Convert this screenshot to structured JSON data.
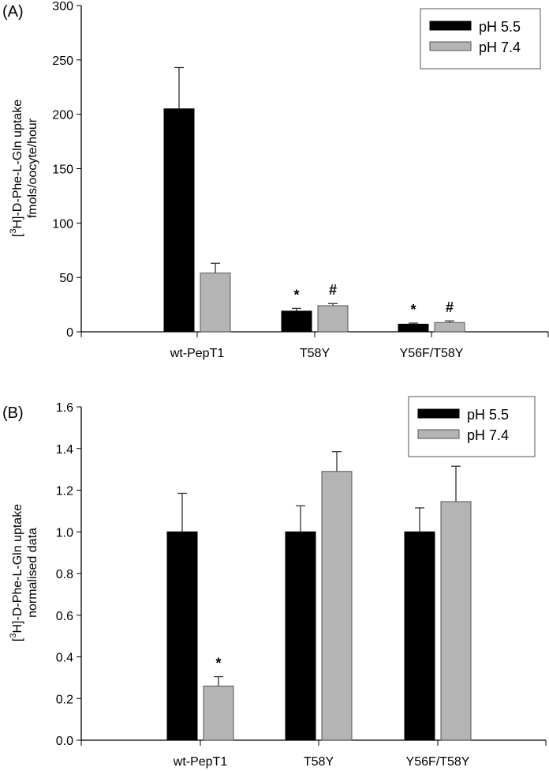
{
  "colors": {
    "ph55": "#000000",
    "ph74": "#b4b4b4",
    "axis": "#000000",
    "legend_border": "#555555"
  },
  "chart_data": [
    {
      "type": "bar",
      "panel_label": "(A)",
      "title": "",
      "ylabel_line1": "[3H]-D-Phe-L-Gln uptake",
      "ylabel_line2": "fmols/oocyte/hour",
      "xlabel": "",
      "categories": [
        "wt-PepT1",
        "T58Y",
        "Y56F/T58Y"
      ],
      "ylim": [
        0,
        300
      ],
      "yticks": [
        0,
        50,
        100,
        150,
        200,
        250,
        300
      ],
      "ytick_labels": [
        "0",
        "50",
        "100",
        "150",
        "200",
        "250",
        "300"
      ],
      "legend": {
        "position": "top-right",
        "entries": [
          "pH 5.5",
          "pH 7.4"
        ]
      },
      "series": [
        {
          "name": "pH 5.5",
          "values": [
            205,
            19,
            7
          ],
          "errors": [
            38,
            2.5,
            1
          ],
          "annotations": [
            "",
            "*",
            "*"
          ]
        },
        {
          "name": "pH 7.4",
          "values": [
            54,
            24,
            8.5
          ],
          "errors": [
            9,
            2,
            1.5
          ],
          "annotations": [
            "",
            "#",
            "#"
          ]
        }
      ],
      "grid": false
    },
    {
      "type": "bar",
      "panel_label": "(B)",
      "title": "",
      "ylabel_line1": "[3H]-D-Phe-L-Gln uptake",
      "ylabel_line2": "normalised data",
      "xlabel": "",
      "categories": [
        "wt-PepT1",
        "T58Y",
        "Y56F/T58Y"
      ],
      "ylim": [
        0,
        1.6
      ],
      "yticks": [
        0,
        0.2,
        0.4,
        0.6,
        0.8,
        1.0,
        1.2,
        1.4,
        1.6
      ],
      "ytick_labels": [
        "0.0",
        "0.2",
        "0.4",
        "0.6",
        "0.8",
        "1.0",
        "1.2",
        "1.4",
        "1.6"
      ],
      "legend": {
        "position": "top-right",
        "entries": [
          "pH 5.5",
          "pH 7.4"
        ]
      },
      "series": [
        {
          "name": "pH 5.5",
          "values": [
            1.0,
            1.0,
            1.0
          ],
          "errors": [
            0.185,
            0.125,
            0.115
          ],
          "annotations": [
            "",
            "",
            ""
          ]
        },
        {
          "name": "pH 7.4",
          "values": [
            0.26,
            1.29,
            1.145
          ],
          "errors": [
            0.045,
            0.095,
            0.17
          ],
          "annotations": [
            "*",
            "",
            ""
          ]
        }
      ],
      "grid": false
    }
  ]
}
